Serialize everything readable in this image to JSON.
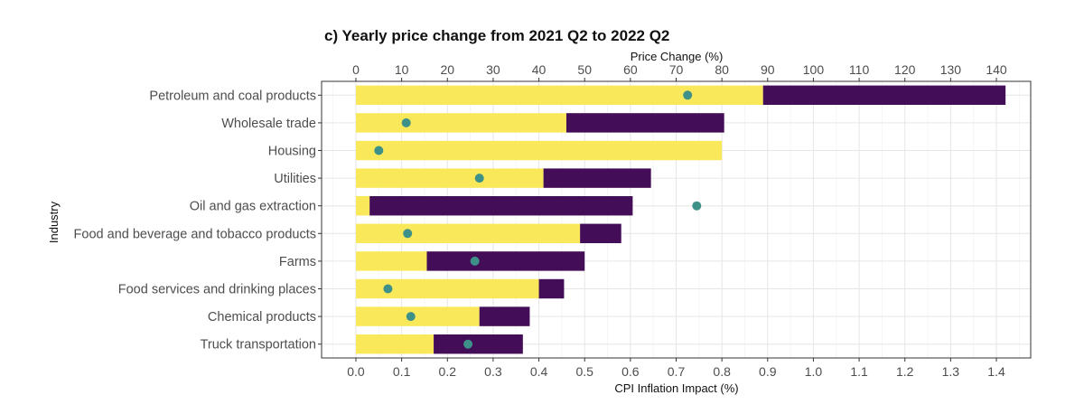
{
  "chart_data": {
    "type": "bar",
    "title": "c) Yearly price change from 2021 Q2 to 2022 Q2",
    "ylabel": "Industry",
    "xlabel": "CPI Inflation Impact (%)",
    "x2label": "Price Change (%)",
    "xlim": [
      -0.075,
      1.475
    ],
    "x2lim": [
      -7.5,
      147.5
    ],
    "x_ticks": [
      "0.0",
      "0.1",
      "0.2",
      "0.3",
      "0.4",
      "0.5",
      "0.6",
      "0.7",
      "0.8",
      "0.9",
      "1.0",
      "1.1",
      "1.2",
      "1.3",
      "1.4"
    ],
    "x_tick_values": [
      0,
      0.1,
      0.2,
      0.3,
      0.4,
      0.5,
      0.6,
      0.7,
      0.8,
      0.9,
      1.0,
      1.1,
      1.2,
      1.3,
      1.4
    ],
    "x2_ticks": [
      "0",
      "10",
      "20",
      "30",
      "40",
      "50",
      "60",
      "70",
      "80",
      "90",
      "100",
      "110",
      "120",
      "130",
      "140"
    ],
    "x2_tick_values": [
      0,
      10,
      20,
      30,
      40,
      50,
      60,
      70,
      80,
      90,
      100,
      110,
      120,
      130,
      140
    ],
    "stacked": true,
    "grid": true,
    "legend": "none",
    "colors": {
      "segment1": "#f9e95a",
      "segment2": "#440d57",
      "point": "#3e9189"
    },
    "categories": [
      "Petroleum and coal products",
      "Wholesale trade",
      "Housing",
      "Utilities",
      "Oil and gas extraction",
      "Food and beverage and tobacco products",
      "Farms",
      "Food services and drinking places",
      "Chemical products",
      "Truck transportation"
    ],
    "series": [
      {
        "values": [
          0.89,
          0.46,
          0.8,
          0.41,
          0.03,
          0.49,
          0.155,
          0.4,
          0.27,
          0.17
        ]
      },
      {
        "values": [
          0.53,
          0.345,
          0.0,
          0.235,
          0.575,
          0.09,
          0.345,
          0.055,
          0.11,
          0.195
        ]
      }
    ],
    "points_price_change": [
      72.5,
      11.0,
      5.0,
      27.0,
      74.5,
      11.3,
      26.0,
      7.0,
      12.0,
      24.5
    ]
  }
}
